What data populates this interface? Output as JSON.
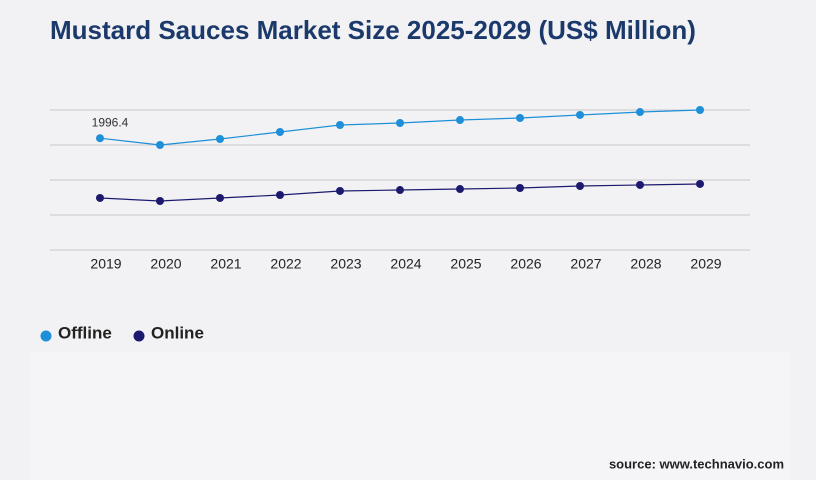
{
  "chart_data": {
    "type": "line",
    "title": "Mustard Sauces Market Size 2025-2029 (US$ Million)",
    "categories": [
      "2019",
      "2020",
      "2021",
      "2022",
      "2023",
      "2024",
      "2025",
      "2026",
      "2027",
      "2028",
      "2029"
    ],
    "series": [
      {
        "name": "Offline",
        "color": "#1e8fd8",
        "values": [
          1996.4,
          1875,
          1982,
          2107,
          2232,
          2268,
          2321,
          2357,
          2411,
          2464,
          2500
        ],
        "labeled_points": [
          0
        ]
      },
      {
        "name": "Online",
        "color": "#1c1a6e",
        "values": [
          929,
          875,
          929,
          982,
          1054,
          1071,
          1089,
          1107,
          1143,
          1161,
          1179
        ]
      }
    ],
    "ylim": [
      0,
      2500
    ],
    "yticks": [
      0,
      625,
      1250,
      1875,
      2500
    ],
    "show_ytick_labels": false,
    "grid": true,
    "source": "source: www.technavio.com"
  }
}
